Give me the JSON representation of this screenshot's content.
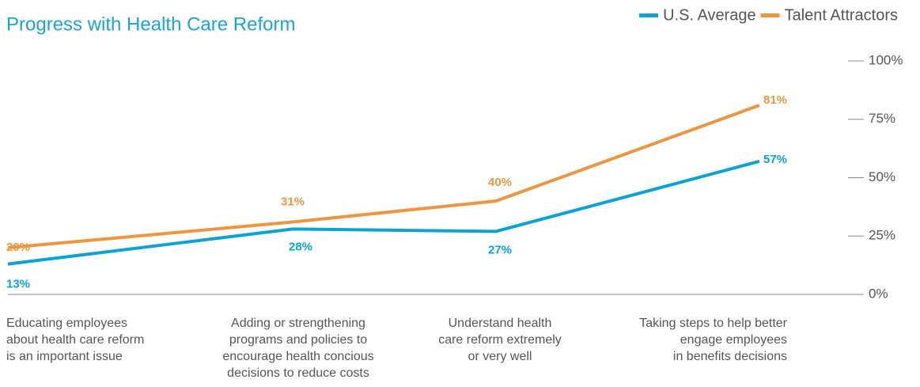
{
  "chart_data": {
    "type": "line",
    "title": "Progress with Health Care Reform",
    "categories": [
      "Educating employees\nabout health care reform\nis an important issue",
      "Adding or strengthening\nprograms and policies to\nencourage health concious\ndecisions to reduce costs",
      "Understand health\ncare reform extremely\nor very well",
      "Taking steps to help better\nengage employees\nin benefits decisions"
    ],
    "series": [
      {
        "name": "U.S. Average",
        "color": "#0aa3d8",
        "values": [
          13,
          28,
          27,
          57
        ],
        "value_labels": [
          "13%",
          "28%",
          "27%",
          "57%"
        ]
      },
      {
        "name": "Talent Attractors",
        "color": "#f0953f",
        "values": [
          20,
          31,
          40,
          81
        ],
        "value_labels": [
          "20%",
          "31%",
          "40%",
          "81%"
        ]
      }
    ],
    "ylim": [
      0,
      100
    ],
    "yticks": [
      {
        "value": 0,
        "label": "0%"
      },
      {
        "value": 25,
        "label": "25%"
      },
      {
        "value": 50,
        "label": "50%"
      },
      {
        "value": 75,
        "label": "75%"
      },
      {
        "value": 100,
        "label": "100%"
      }
    ],
    "legend": "top-right"
  }
}
